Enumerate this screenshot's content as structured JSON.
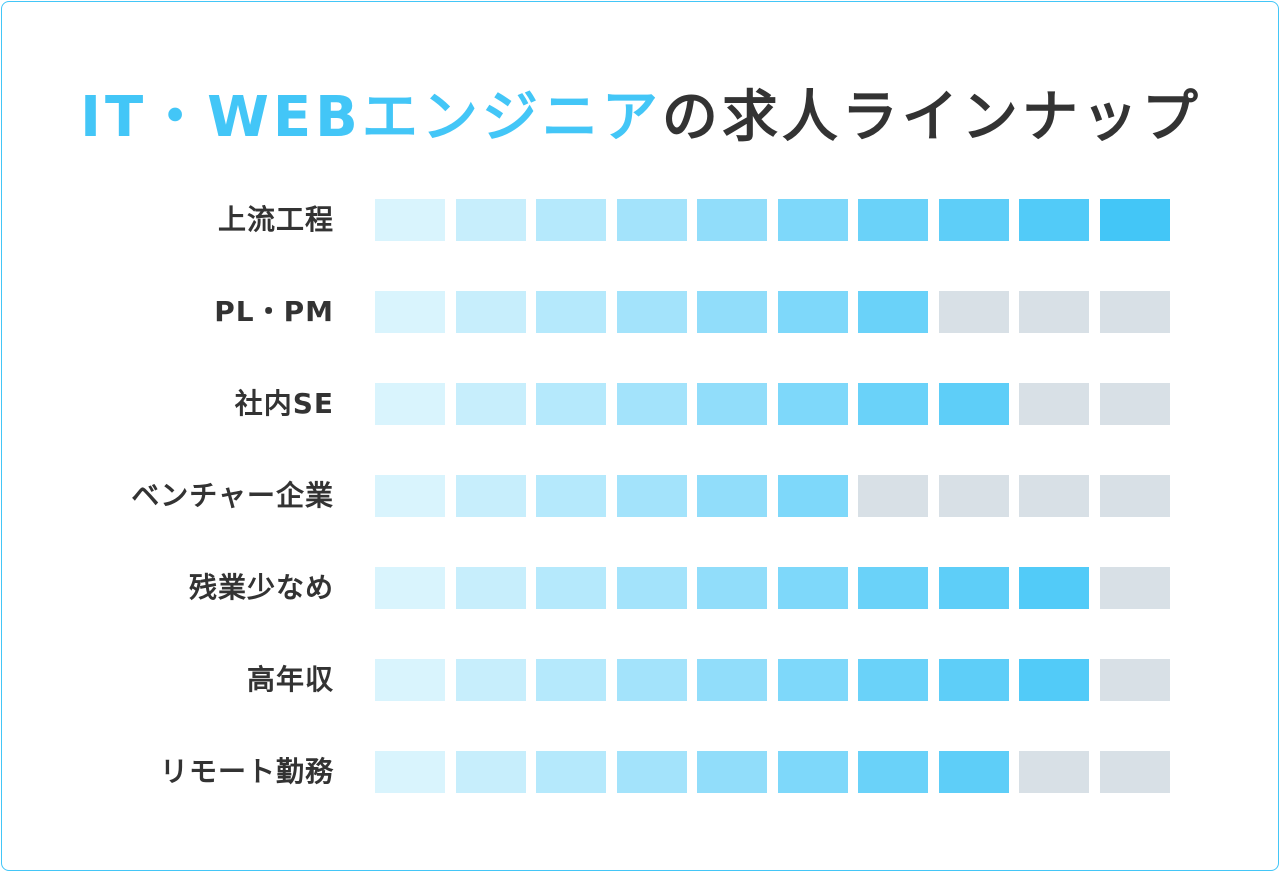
{
  "title": {
    "accent": "IT・WEBエンジニア",
    "rest": "の求人ラインナップ"
  },
  "colors": {
    "empty": "#d8e0e6",
    "levels": [
      "#d9f4fd",
      "#c7eefc",
      "#b5e9fc",
      "#a3e3fb",
      "#91ddfa",
      "#7ed8fa",
      "#6ad2f9",
      "#5ecef8",
      "#52cbf8",
      "#43c6f7"
    ],
    "border": "#43c6f7"
  },
  "chart_data": {
    "type": "table",
    "max": 10,
    "rows": [
      {
        "label": "上流工程",
        "value": 10
      },
      {
        "label": "PL・PM",
        "value": 7
      },
      {
        "label": "社内SE",
        "value": 8
      },
      {
        "label": "ベンチャー企業",
        "value": 6
      },
      {
        "label": "残業少なめ",
        "value": 9
      },
      {
        "label": "高年収",
        "value": 9
      },
      {
        "label": "リモート勤務",
        "value": 8
      }
    ]
  }
}
